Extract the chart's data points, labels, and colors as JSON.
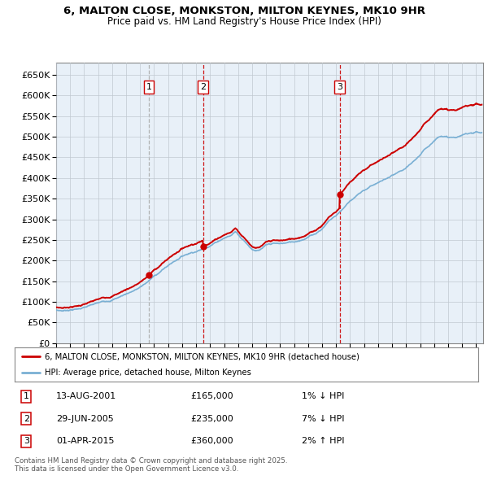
{
  "title1": "6, MALTON CLOSE, MONKSTON, MILTON KEYNES, MK10 9HR",
  "title2": "Price paid vs. HM Land Registry's House Price Index (HPI)",
  "ylabel_ticks": [
    "£0",
    "£50K",
    "£100K",
    "£150K",
    "£200K",
    "£250K",
    "£300K",
    "£350K",
    "£400K",
    "£450K",
    "£500K",
    "£550K",
    "£600K",
    "£650K"
  ],
  "ytick_values": [
    0,
    50000,
    100000,
    150000,
    200000,
    250000,
    300000,
    350000,
    400000,
    450000,
    500000,
    550000,
    600000,
    650000
  ],
  "ylim": [
    0,
    680000
  ],
  "xlim_start": 1995.0,
  "xlim_end": 2025.5,
  "transactions": [
    {
      "date": 2001.617,
      "price": 165000,
      "label": "1",
      "vline_style": "--",
      "vline_color": "#aaaaaa"
    },
    {
      "date": 2005.494,
      "price": 235000,
      "label": "2",
      "vline_style": "--",
      "vline_color": "#cc0000"
    },
    {
      "date": 2015.25,
      "price": 360000,
      "label": "3",
      "vline_style": "--",
      "vline_color": "#cc0000"
    }
  ],
  "hpi_line_color": "#7ab0d4",
  "price_line_color": "#cc0000",
  "background_color": "#ffffff",
  "plot_bg_color": "#e8f0f8",
  "grid_color": "#c0c8d0",
  "legend_entries": [
    "6, MALTON CLOSE, MONKSTON, MILTON KEYNES, MK10 9HR (detached house)",
    "HPI: Average price, detached house, Milton Keynes"
  ],
  "table_entries": [
    {
      "num": "1",
      "date": "13-AUG-2001",
      "price": "£165,000",
      "change": "1% ↓ HPI"
    },
    {
      "num": "2",
      "date": "29-JUN-2005",
      "price": "£235,000",
      "change": "7% ↓ HPI"
    },
    {
      "num": "3",
      "date": "01-APR-2015",
      "price": "£360,000",
      "change": "2% ↑ HPI"
    }
  ],
  "footnote": "Contains HM Land Registry data © Crown copyright and database right 2025.\nThis data is licensed under the Open Government Licence v3.0.",
  "hpi_anchors": [
    [
      1995.0,
      80000
    ],
    [
      1995.5,
      79000
    ],
    [
      1996.0,
      82000
    ],
    [
      1996.5,
      84000
    ],
    [
      1997.0,
      88000
    ],
    [
      1997.5,
      92000
    ],
    [
      1998.0,
      96000
    ],
    [
      1998.5,
      100000
    ],
    [
      1999.0,
      105000
    ],
    [
      1999.5,
      112000
    ],
    [
      2000.0,
      120000
    ],
    [
      2000.5,
      128000
    ],
    [
      2001.0,
      136000
    ],
    [
      2001.5,
      148000
    ],
    [
      2002.0,
      162000
    ],
    [
      2002.5,
      175000
    ],
    [
      2003.0,
      188000
    ],
    [
      2003.5,
      200000
    ],
    [
      2004.0,
      212000
    ],
    [
      2004.5,
      220000
    ],
    [
      2005.0,
      226000
    ],
    [
      2005.5,
      232000
    ],
    [
      2006.0,
      242000
    ],
    [
      2006.5,
      252000
    ],
    [
      2007.0,
      262000
    ],
    [
      2007.5,
      268000
    ],
    [
      2007.8,
      278000
    ],
    [
      2008.0,
      272000
    ],
    [
      2008.5,
      255000
    ],
    [
      2009.0,
      238000
    ],
    [
      2009.5,
      235000
    ],
    [
      2010.0,
      245000
    ],
    [
      2010.5,
      248000
    ],
    [
      2011.0,
      246000
    ],
    [
      2011.5,
      248000
    ],
    [
      2012.0,
      250000
    ],
    [
      2012.5,
      256000
    ],
    [
      2013.0,
      264000
    ],
    [
      2013.5,
      272000
    ],
    [
      2014.0,
      285000
    ],
    [
      2014.5,
      305000
    ],
    [
      2015.0,
      318000
    ],
    [
      2015.5,
      335000
    ],
    [
      2016.0,
      355000
    ],
    [
      2016.5,
      368000
    ],
    [
      2017.0,
      378000
    ],
    [
      2017.5,
      390000
    ],
    [
      2018.0,
      398000
    ],
    [
      2018.5,
      405000
    ],
    [
      2019.0,
      412000
    ],
    [
      2019.5,
      418000
    ],
    [
      2020.0,
      425000
    ],
    [
      2020.5,
      438000
    ],
    [
      2021.0,
      455000
    ],
    [
      2021.5,
      472000
    ],
    [
      2022.0,
      490000
    ],
    [
      2022.5,
      505000
    ],
    [
      2023.0,
      500000
    ],
    [
      2023.5,
      498000
    ],
    [
      2024.0,
      502000
    ],
    [
      2024.5,
      508000
    ],
    [
      2025.0,
      512000
    ],
    [
      2025.3,
      510000
    ]
  ]
}
